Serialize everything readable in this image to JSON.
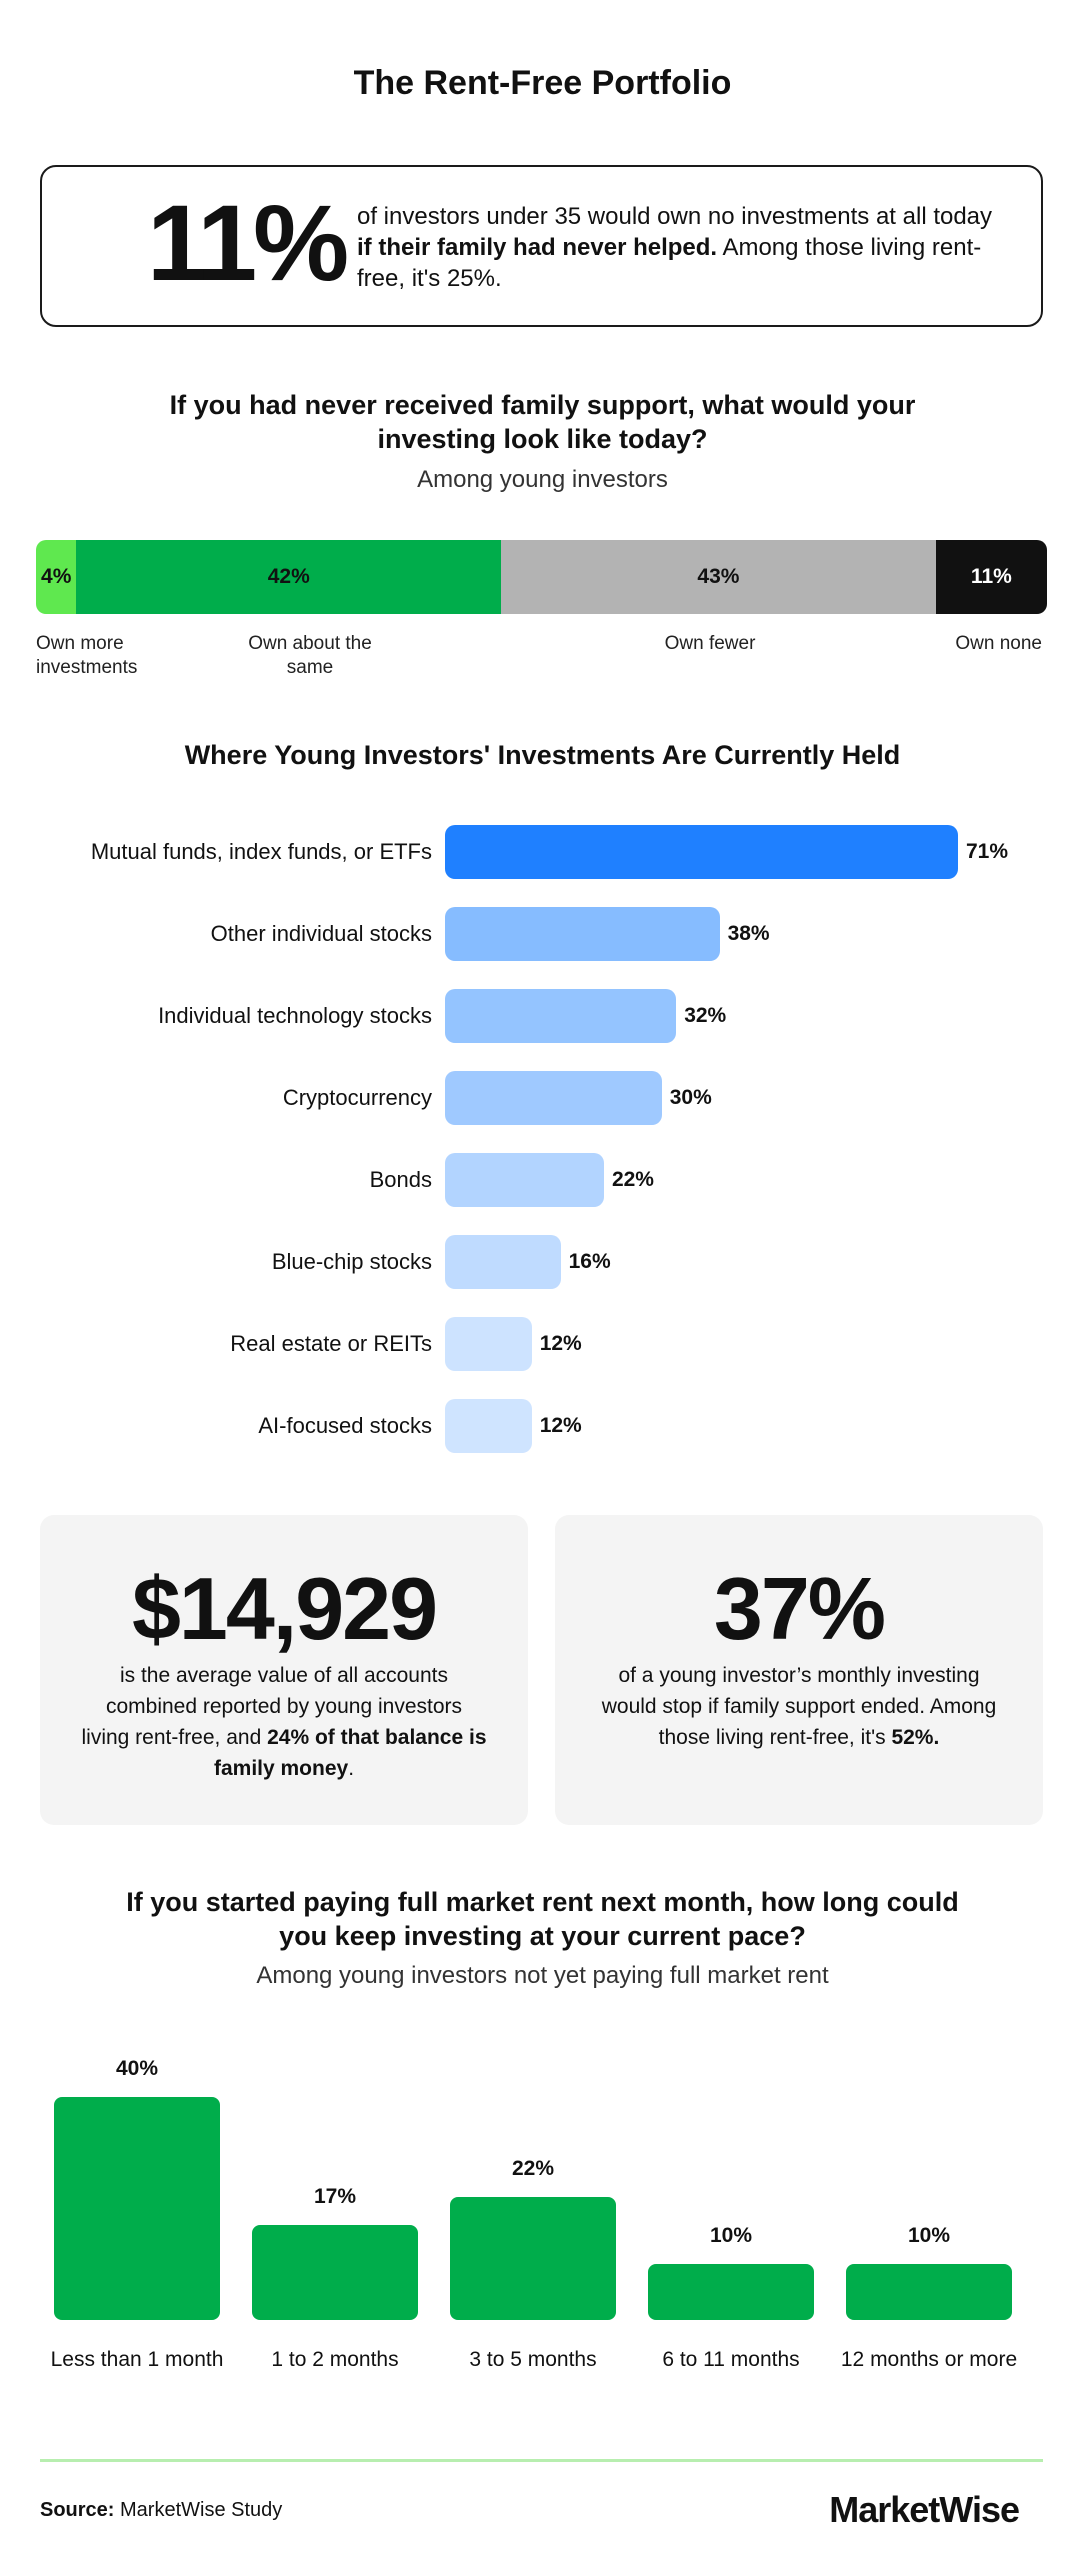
{
  "title": "The Rent-Free Portfolio",
  "hero": {
    "number": "11%",
    "text_before": "of investors under 35 would own no investments at all today ",
    "text_bold": "if their family had never helped.",
    "text_after": " Among those living rent-free, it's 25%."
  },
  "section1": {
    "title": "If you had never received family support, what would your investing look like today?",
    "subtitle": "Among young investors"
  },
  "section2": {
    "title": "Where Young Investors' Investments Are Currently Held"
  },
  "card1": {
    "number": "$14,929",
    "text_before": "is the average value of all accounts combined reported by young investors living rent-free, and ",
    "text_bold": "24% of that balance is family money",
    "text_after": "."
  },
  "card2": {
    "number": "37%",
    "text_before": "of a young investor’s monthly investing would stop if family support ended. Among those living rent-free, it's ",
    "text_bold": "52%.",
    "text_after": ""
  },
  "section3": {
    "title": "If you started paying full market rent next month, how long could you keep investing at your current pace?",
    "subtitle": "Among young investors not yet paying full market rent"
  },
  "footer": {
    "source_label": "Source:",
    "source_text": " MarketWise Study",
    "logo": "MarketWise"
  },
  "chart_data": [
    {
      "type": "bar",
      "orientation": "stacked-horizontal",
      "categories": [
        "Own more investments",
        "Own about the same",
        "Own fewer",
        "Own none"
      ],
      "values": [
        4,
        42,
        43,
        11
      ],
      "value_labels": [
        "4%",
        "42%",
        "43%",
        "11%"
      ],
      "colors": [
        "#5fe84f",
        "#00ad4b",
        "#b3b3b3",
        "#111111"
      ],
      "unit": "%"
    },
    {
      "type": "bar",
      "orientation": "horizontal",
      "categories": [
        "Mutual funds, index funds, or ETFs",
        "Other individual stocks",
        "Individual technology stocks",
        "Cryptocurrency",
        "Bonds",
        "Blue-chip stocks",
        "Real estate or REITs",
        "AI-focused stocks"
      ],
      "values": [
        71,
        38,
        32,
        30,
        22,
        16,
        12,
        12
      ],
      "value_labels": [
        "71%",
        "38%",
        "32%",
        "30%",
        "22%",
        "16%",
        "12%",
        "12%"
      ],
      "colors": [
        "#1f80ff",
        "#86bcff",
        "#94c4ff",
        "#9fc9ff",
        "#b2d4ff",
        "#bfdbff",
        "#cde3ff",
        "#cfe4ff"
      ],
      "unit": "%"
    },
    {
      "type": "bar",
      "orientation": "vertical",
      "categories": [
        "Less than 1 month",
        "1 to 2 months",
        "3 to 5 months",
        "6 to 11 months",
        "12 months or more"
      ],
      "values": [
        40,
        17,
        22,
        10,
        10
      ],
      "value_labels": [
        "40%",
        "17%",
        "22%",
        "10%",
        "10%"
      ],
      "colors": [
        "#00ad4b"
      ],
      "unit": "%"
    }
  ]
}
